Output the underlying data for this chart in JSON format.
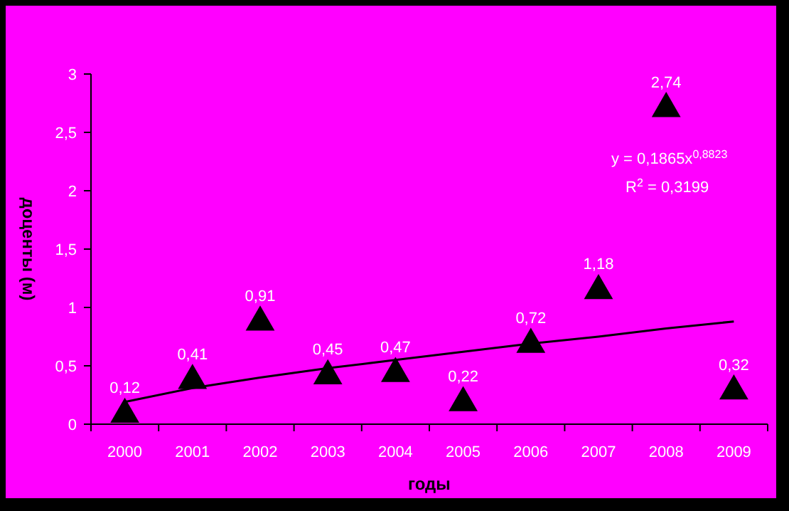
{
  "chart_data": {
    "type": "scatter",
    "xlabel": "годы",
    "ylabel": "доценты (м)",
    "categories": [
      "2000",
      "2001",
      "2002",
      "2003",
      "2004",
      "2005",
      "2006",
      "2007",
      "2008",
      "2009"
    ],
    "series": [
      {
        "color": "#000000",
        "marker": "triangle",
        "values": [
          0.12,
          0.41,
          0.91,
          0.45,
          0.47,
          0.22,
          0.72,
          1.18,
          2.74,
          0.32
        ],
        "value_labels": [
          "0,12",
          "0,41",
          "0,91",
          "0,45",
          "0,47",
          "0,22",
          "0,72",
          "1,18",
          "2,74",
          "0,32"
        ]
      },
      {
        "type": "line",
        "color": "#000000",
        "values": [
          0.19,
          0.31,
          0.4,
          0.48,
          0.55,
          0.62,
          0.69,
          0.75,
          0.82,
          0.88
        ]
      }
    ],
    "ylim": [
      0,
      3
    ],
    "yticks": [
      0,
      {
        "value": 0.5,
        "label": "0,5"
      },
      1,
      {
        "value": 1.5,
        "label": "1,5"
      },
      2,
      {
        "value": 2.5,
        "label": "2,5"
      },
      3
    ],
    "annotations": [
      "y = 0,1865x$^{0,8823}$",
      "R$^{2}$ = 0,3199"
    ],
    "grid": false
  }
}
